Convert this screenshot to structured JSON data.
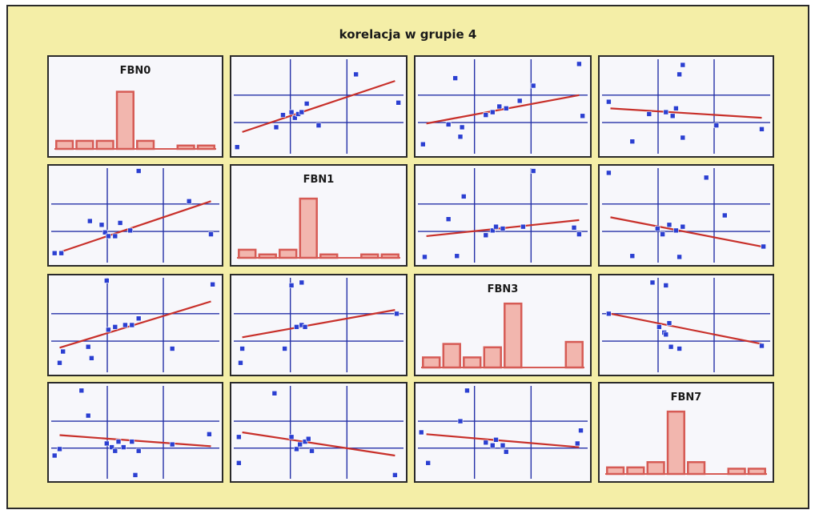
{
  "page": {
    "title": "korelacja w grupie 4"
  },
  "colors": {
    "background": "#f4eea7",
    "panel_fill": "#f7f7fb",
    "panel_border": "#2a2a2a",
    "grid": "#2531a8",
    "points": "#2b3fd1",
    "fit_line": "#c8302a",
    "bars": "#d65b55",
    "bar_fill": "#f2b6ae"
  },
  "chart_data": {
    "type": "scatter",
    "variables": [
      "FBN0",
      "FBN1",
      "FBN3",
      "FBN7"
    ],
    "panels": [
      {
        "row": 0,
        "col": 0,
        "type": "bar",
        "label": "FBN0",
        "values": [
          0.12,
          0.12,
          0.12,
          0.85,
          0.12,
          0.0,
          0.05,
          0.05
        ]
      },
      {
        "row": 0,
        "col": 1,
        "type": "scatter",
        "points": [
          [
            0.02,
            0.93
          ],
          [
            0.25,
            0.72
          ],
          [
            0.29,
            0.59
          ],
          [
            0.34,
            0.56
          ],
          [
            0.36,
            0.62
          ],
          [
            0.38,
            0.58
          ],
          [
            0.4,
            0.56
          ],
          [
            0.43,
            0.47
          ],
          [
            0.5,
            0.7
          ],
          [
            0.72,
            0.16
          ],
          [
            0.97,
            0.46
          ]
        ],
        "fit": [
          [
            0.05,
            0.77
          ],
          [
            0.95,
            0.23
          ]
        ]
      },
      {
        "row": 0,
        "col": 2,
        "type": "scatter",
        "points": [
          [
            0.03,
            0.9
          ],
          [
            0.18,
            0.69
          ],
          [
            0.25,
            0.82
          ],
          [
            0.26,
            0.72
          ],
          [
            0.4,
            0.59
          ],
          [
            0.44,
            0.56
          ],
          [
            0.48,
            0.5
          ],
          [
            0.52,
            0.52
          ],
          [
            0.6,
            0.44
          ],
          [
            0.68,
            0.28
          ],
          [
            0.22,
            0.2
          ],
          [
            0.95,
            0.05
          ],
          [
            0.97,
            0.6
          ]
        ],
        "fit": [
          [
            0.05,
            0.68
          ],
          [
            0.95,
            0.38
          ]
        ]
      },
      {
        "row": 0,
        "col": 3,
        "type": "scatter",
        "points": [
          [
            0.04,
            0.45
          ],
          [
            0.18,
            0.87
          ],
          [
            0.28,
            0.58
          ],
          [
            0.38,
            0.56
          ],
          [
            0.42,
            0.6
          ],
          [
            0.44,
            0.52
          ],
          [
            0.46,
            0.16
          ],
          [
            0.48,
            0.06
          ],
          [
            0.48,
            0.83
          ],
          [
            0.68,
            0.7
          ],
          [
            0.95,
            0.74
          ]
        ],
        "fit": [
          [
            0.05,
            0.52
          ],
          [
            0.95,
            0.62
          ]
        ]
      },
      {
        "row": 1,
        "col": 0,
        "type": "scatter",
        "points": [
          [
            0.02,
            0.9
          ],
          [
            0.06,
            0.9
          ],
          [
            0.23,
            0.56
          ],
          [
            0.3,
            0.6
          ],
          [
            0.32,
            0.68
          ],
          [
            0.34,
            0.72
          ],
          [
            0.38,
            0.72
          ],
          [
            0.41,
            0.58
          ],
          [
            0.47,
            0.66
          ],
          [
            0.52,
            0.03
          ],
          [
            0.82,
            0.35
          ],
          [
            0.95,
            0.7
          ]
        ],
        "fit": [
          [
            0.05,
            0.89
          ],
          [
            0.95,
            0.35
          ]
        ]
      },
      {
        "row": 1,
        "col": 1,
        "type": "bar",
        "label": "FBN1",
        "values": [
          0.12,
          0.05,
          0.12,
          0.88,
          0.05,
          0.0,
          0.05,
          0.05
        ]
      },
      {
        "row": 1,
        "col": 2,
        "type": "scatter",
        "points": [
          [
            0.04,
            0.94
          ],
          [
            0.18,
            0.54
          ],
          [
            0.27,
            0.3
          ],
          [
            0.23,
            0.93
          ],
          [
            0.4,
            0.71
          ],
          [
            0.44,
            0.66
          ],
          [
            0.46,
            0.62
          ],
          [
            0.5,
            0.64
          ],
          [
            0.62,
            0.62
          ],
          [
            0.68,
            0.03
          ],
          [
            0.92,
            0.63
          ],
          [
            0.95,
            0.7
          ]
        ],
        "fit": [
          [
            0.05,
            0.72
          ],
          [
            0.95,
            0.55
          ]
        ]
      },
      {
        "row": 1,
        "col": 3,
        "type": "scatter",
        "points": [
          [
            0.04,
            0.05
          ],
          [
            0.18,
            0.93
          ],
          [
            0.33,
            0.64
          ],
          [
            0.36,
            0.7
          ],
          [
            0.4,
            0.6
          ],
          [
            0.44,
            0.66
          ],
          [
            0.48,
            0.62
          ],
          [
            0.46,
            0.94
          ],
          [
            0.62,
            0.1
          ],
          [
            0.73,
            0.5
          ],
          [
            0.96,
            0.83
          ]
        ],
        "fit": [
          [
            0.05,
            0.52
          ],
          [
            0.95,
            0.83
          ]
        ]
      },
      {
        "row": 2,
        "col": 0,
        "type": "scatter",
        "points": [
          [
            0.05,
            0.9
          ],
          [
            0.07,
            0.78
          ],
          [
            0.22,
            0.73
          ],
          [
            0.24,
            0.85
          ],
          [
            0.34,
            0.55
          ],
          [
            0.38,
            0.52
          ],
          [
            0.44,
            0.5
          ],
          [
            0.48,
            0.5
          ],
          [
            0.52,
            0.43
          ],
          [
            0.72,
            0.75
          ],
          [
            0.33,
            0.03
          ],
          [
            0.96,
            0.07
          ]
        ],
        "fit": [
          [
            0.05,
            0.74
          ],
          [
            0.95,
            0.25
          ]
        ]
      },
      {
        "row": 2,
        "col": 1,
        "type": "scatter",
        "points": [
          [
            0.04,
            0.9
          ],
          [
            0.05,
            0.75
          ],
          [
            0.3,
            0.75
          ],
          [
            0.34,
            0.08
          ],
          [
            0.37,
            0.52
          ],
          [
            0.4,
            0.5
          ],
          [
            0.42,
            0.52
          ],
          [
            0.4,
            0.05
          ],
          [
            0.96,
            0.38
          ]
        ],
        "fit": [
          [
            0.05,
            0.63
          ],
          [
            0.95,
            0.34
          ]
        ]
      },
      {
        "row": 2,
        "col": 2,
        "type": "bar",
        "label": "FBN3",
        "values": [
          0.15,
          0.35,
          0.15,
          0.3,
          0.95,
          0.0,
          0.0,
          0.38
        ]
      },
      {
        "row": 2,
        "col": 3,
        "type": "scatter",
        "points": [
          [
            0.04,
            0.38
          ],
          [
            0.3,
            0.05
          ],
          [
            0.34,
            0.52
          ],
          [
            0.37,
            0.58
          ],
          [
            0.38,
            0.6
          ],
          [
            0.4,
            0.48
          ],
          [
            0.41,
            0.73
          ],
          [
            0.46,
            0.75
          ],
          [
            0.38,
            0.08
          ],
          [
            0.95,
            0.72
          ]
        ],
        "fit": [
          [
            0.05,
            0.38
          ],
          [
            0.95,
            0.7
          ]
        ]
      },
      {
        "row": 3,
        "col": 0,
        "type": "scatter",
        "points": [
          [
            0.05,
            0.68
          ],
          [
            0.02,
            0.75
          ],
          [
            0.18,
            0.05
          ],
          [
            0.22,
            0.32
          ],
          [
            0.33,
            0.62
          ],
          [
            0.36,
            0.66
          ],
          [
            0.38,
            0.7
          ],
          [
            0.4,
            0.6
          ],
          [
            0.43,
            0.66
          ],
          [
            0.48,
            0.6
          ],
          [
            0.52,
            0.7
          ],
          [
            0.5,
            0.96
          ],
          [
            0.72,
            0.63
          ],
          [
            0.94,
            0.52
          ]
        ],
        "fit": [
          [
            0.05,
            0.53
          ],
          [
            0.95,
            0.65
          ]
        ]
      },
      {
        "row": 3,
        "col": 1,
        "type": "scatter",
        "points": [
          [
            0.03,
            0.55
          ],
          [
            0.03,
            0.83
          ],
          [
            0.24,
            0.08
          ],
          [
            0.34,
            0.55
          ],
          [
            0.37,
            0.68
          ],
          [
            0.39,
            0.63
          ],
          [
            0.42,
            0.6
          ],
          [
            0.44,
            0.57
          ],
          [
            0.46,
            0.7
          ],
          [
            0.95,
            0.96
          ]
        ],
        "fit": [
          [
            0.05,
            0.5
          ],
          [
            0.95,
            0.75
          ]
        ]
      },
      {
        "row": 3,
        "col": 2,
        "type": "scatter",
        "points": [
          [
            0.02,
            0.5
          ],
          [
            0.06,
            0.83
          ],
          [
            0.25,
            0.38
          ],
          [
            0.29,
            0.05
          ],
          [
            0.4,
            0.61
          ],
          [
            0.44,
            0.64
          ],
          [
            0.46,
            0.58
          ],
          [
            0.5,
            0.64
          ],
          [
            0.52,
            0.71
          ],
          [
            0.94,
            0.62
          ],
          [
            0.96,
            0.48
          ]
        ],
        "fit": [
          [
            0.05,
            0.52
          ],
          [
            0.95,
            0.66
          ]
        ]
      },
      {
        "row": 3,
        "col": 3,
        "type": "bar",
        "label": "FBN7",
        "values": [
          0.1,
          0.1,
          0.18,
          0.95,
          0.18,
          0.0,
          0.08,
          0.08
        ]
      }
    ]
  }
}
